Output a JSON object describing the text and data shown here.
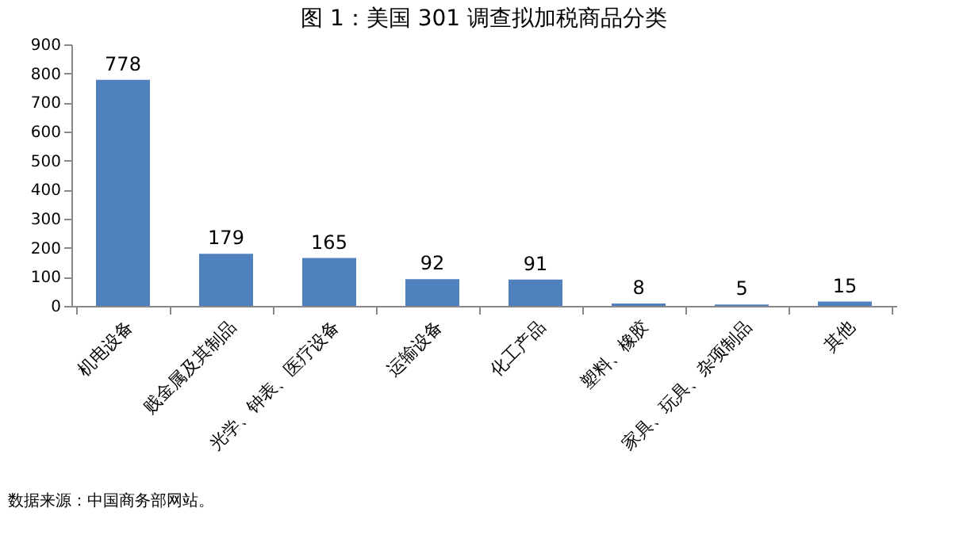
{
  "chart_data": {
    "type": "bar",
    "title": "图 1：美国 301 调查拟加税商品分类",
    "categories": [
      "机电设备",
      "贱金属及其制品",
      "光学、钟表、医疗设备",
      "运输设备",
      "化工产品",
      "塑料、橡胶",
      "家具、玩具、杂项制品",
      "其他"
    ],
    "values": [
      778,
      179,
      165,
      92,
      91,
      8,
      5,
      15
    ],
    "color": "#4f81bd",
    "data_labels": true,
    "ylim": [
      0,
      900
    ],
    "yticks": [
      0,
      100,
      200,
      300,
      400,
      500,
      600,
      700,
      800,
      900
    ],
    "grid": false,
    "annotations": [
      "数据来源：中国商务部网站。"
    ]
  }
}
